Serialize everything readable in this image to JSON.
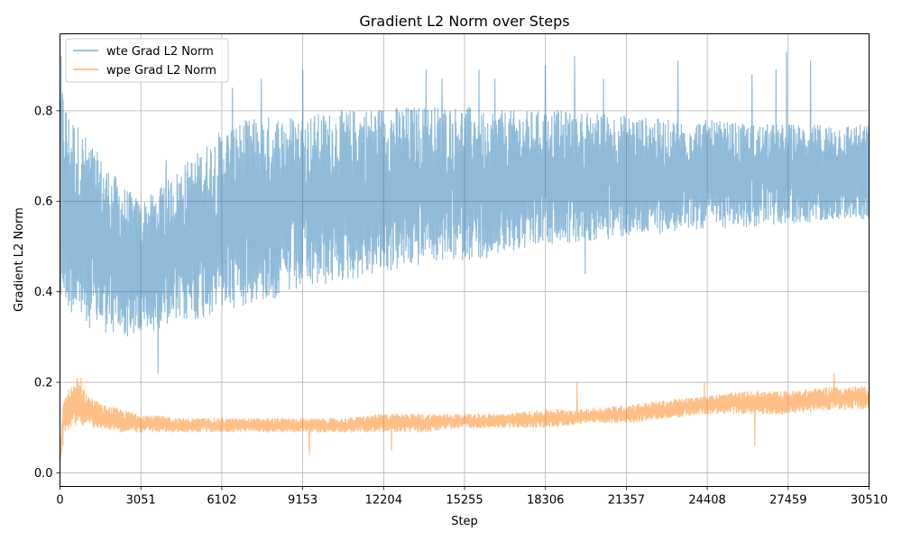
{
  "chart_data": {
    "type": "line",
    "title": "Gradient L2 Norm over Steps",
    "xlabel": "Step",
    "ylabel": "Gradient L2 Norm",
    "xlim": [
      0,
      30510
    ],
    "ylim": [
      -0.03,
      0.97
    ],
    "x_ticks": [
      0,
      3051,
      6102,
      9153,
      12204,
      15255,
      18306,
      21357,
      24408,
      27459,
      30510
    ],
    "x_tick_labels": [
      "0",
      "3051",
      "6102",
      "9153",
      "12204",
      "15255",
      "18306",
      "21357",
      "24408",
      "27459",
      "30510"
    ],
    "y_ticks": [
      0.0,
      0.2,
      0.4,
      0.6,
      0.8
    ],
    "y_tick_labels": [
      "0.0",
      "0.2",
      "0.4",
      "0.6",
      "0.8"
    ],
    "grid": true,
    "legend_position": "top-left",
    "series": [
      {
        "name": "wte Grad L2 Norm",
        "color": "#1f77b4",
        "alpha": 0.5,
        "x": [
          0,
          300,
          800,
          1500,
          2300,
          3051,
          3800,
          4600,
          5400,
          6102,
          7000,
          8000,
          9153,
          10500,
          12204,
          13800,
          15255,
          16800,
          18306,
          19800,
          21357,
          22900,
          24408,
          25900,
          27459,
          29000,
          30510
        ],
        "lower": [
          0.4,
          0.36,
          0.33,
          0.31,
          0.3,
          0.3,
          0.32,
          0.33,
          0.34,
          0.36,
          0.37,
          0.38,
          0.4,
          0.42,
          0.44,
          0.46,
          0.47,
          0.48,
          0.5,
          0.51,
          0.52,
          0.53,
          0.54,
          0.54,
          0.55,
          0.56,
          0.56
        ],
        "upper": [
          0.88,
          0.8,
          0.76,
          0.7,
          0.64,
          0.6,
          0.63,
          0.68,
          0.72,
          0.76,
          0.78,
          0.79,
          0.79,
          0.8,
          0.81,
          0.81,
          0.81,
          0.8,
          0.8,
          0.8,
          0.79,
          0.78,
          0.78,
          0.77,
          0.77,
          0.77,
          0.77
        ],
        "spikes": [
          [
            50,
            0.92
          ],
          [
            4000,
            0.69
          ],
          [
            3700,
            0.22
          ],
          [
            6500,
            0.85
          ],
          [
            7600,
            0.87
          ],
          [
            9153,
            0.89
          ],
          [
            13800,
            0.89
          ],
          [
            14400,
            0.87
          ],
          [
            15800,
            0.89
          ],
          [
            16400,
            0.87
          ],
          [
            18306,
            0.9
          ],
          [
            19400,
            0.92
          ],
          [
            20500,
            0.87
          ],
          [
            23300,
            0.91
          ],
          [
            26100,
            0.88
          ],
          [
            27000,
            0.89
          ],
          [
            27400,
            0.93
          ],
          [
            28300,
            0.91
          ],
          [
            19800,
            0.44
          ]
        ]
      },
      {
        "name": "wpe Grad L2 Norm",
        "color": "#ff7f0e",
        "alpha": 0.5,
        "x": [
          0,
          150,
          400,
          700,
          1100,
          1600,
          2300,
          3051,
          4600,
          6102,
          7600,
          9153,
          10700,
          12204,
          13800,
          15255,
          16800,
          18306,
          19800,
          21357,
          22900,
          24408,
          25900,
          27459,
          29000,
          30510
        ],
        "lower": [
          0.01,
          0.08,
          0.1,
          0.11,
          0.1,
          0.1,
          0.09,
          0.09,
          0.09,
          0.09,
          0.09,
          0.09,
          0.09,
          0.09,
          0.09,
          0.1,
          0.1,
          0.1,
          0.11,
          0.11,
          0.12,
          0.13,
          0.13,
          0.13,
          0.14,
          0.14
        ],
        "upper": [
          0.06,
          0.17,
          0.19,
          0.2,
          0.17,
          0.15,
          0.14,
          0.13,
          0.12,
          0.12,
          0.12,
          0.12,
          0.12,
          0.13,
          0.13,
          0.13,
          0.13,
          0.14,
          0.14,
          0.15,
          0.16,
          0.17,
          0.18,
          0.18,
          0.19,
          0.19
        ],
        "spikes": [
          [
            650,
            0.21
          ],
          [
            800,
            0.21
          ],
          [
            9400,
            0.04
          ],
          [
            12500,
            0.05
          ],
          [
            19500,
            0.2
          ],
          [
            24300,
            0.2
          ],
          [
            29200,
            0.22
          ],
          [
            26200,
            0.06
          ]
        ]
      }
    ]
  }
}
